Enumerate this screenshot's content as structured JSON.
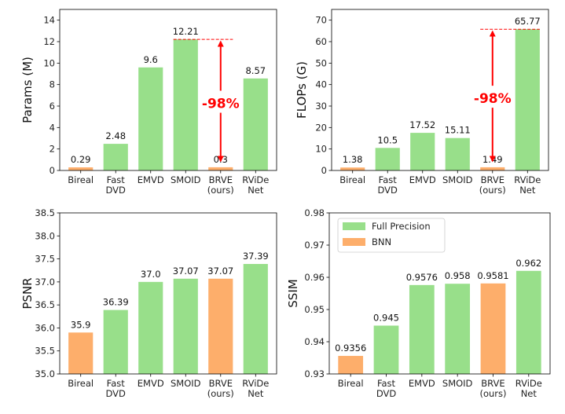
{
  "colors": {
    "full_precision": "#98df8a",
    "bnn": "#fdae6b",
    "annotation": "#ff0000"
  },
  "legend": {
    "placement": "upper-left of SSIM panel",
    "entries": [
      {
        "name": "Full Precision",
        "color": "#98df8a"
      },
      {
        "name": "BNN",
        "color": "#fdae6b"
      }
    ]
  },
  "chart_data": [
    {
      "type": "bar",
      "categories": [
        "Bireal\nFast",
        "Fast\nDVD",
        "EMVD",
        "SMOID",
        "BRVE\n(ours)",
        "RViDe\nNet"
      ],
      "category_labels": [
        [
          "Bireal"
        ],
        [
          "Fast",
          "DVD"
        ],
        [
          "EMVD"
        ],
        [
          "SMOID"
        ],
        [
          "BRVE",
          "(ours)"
        ],
        [
          "RViDe",
          "Net"
        ]
      ],
      "values": [
        0.29,
        2.48,
        9.6,
        12.21,
        0.3,
        8.57
      ],
      "value_labels": [
        "0.29",
        "2.48",
        "9.6",
        "12.21",
        "0.3",
        "8.57"
      ],
      "bar_type": [
        "BNN",
        "Full Precision",
        "Full Precision",
        "Full Precision",
        "BNN",
        "Full Precision"
      ],
      "ylabel": "Params (M)",
      "ylim": [
        0,
        15
      ],
      "yticks": [
        "0",
        "2",
        "4",
        "6",
        "8",
        "10",
        "12",
        "14"
      ],
      "annotation": {
        "text": "-98%",
        "from": 12.21,
        "to": 0.3
      }
    },
    {
      "type": "bar",
      "category_labels": [
        [
          "Bireal"
        ],
        [
          "Fast",
          "DVD"
        ],
        [
          "EMVD"
        ],
        [
          "SMOID"
        ],
        [
          "BRVE",
          "(ours)"
        ],
        [
          "RViDe",
          "Net"
        ]
      ],
      "values": [
        1.38,
        10.5,
        17.52,
        15.11,
        1.49,
        65.77
      ],
      "value_labels": [
        "1.38",
        "10.5",
        "17.52",
        "15.11",
        "1.49",
        "65.77"
      ],
      "bar_type": [
        "BNN",
        "Full Precision",
        "Full Precision",
        "Full Precision",
        "BNN",
        "Full Precision"
      ],
      "ylabel": "FLOPs (G)",
      "ylim": [
        0,
        75
      ],
      "yticks": [
        "0",
        "10",
        "20",
        "30",
        "40",
        "50",
        "60",
        "70"
      ],
      "annotation": {
        "text": "-98%",
        "from": 65.77,
        "to": 1.49
      }
    },
    {
      "type": "bar",
      "category_labels": [
        [
          "Bireal"
        ],
        [
          "Fast",
          "DVD"
        ],
        [
          "EMVD"
        ],
        [
          "SMOID"
        ],
        [
          "BRVE",
          "(ours)"
        ],
        [
          "RViDe",
          "Net"
        ]
      ],
      "values": [
        35.9,
        36.39,
        37.0,
        37.07,
        37.07,
        37.39
      ],
      "value_labels": [
        "35.9",
        "36.39",
        "37.0",
        "37.07",
        "37.07",
        "37.39"
      ],
      "bar_type": [
        "BNN",
        "Full Precision",
        "Full Precision",
        "Full Precision",
        "BNN",
        "Full Precision"
      ],
      "ylabel": "PSNR",
      "ylim": [
        35.0,
        38.5
      ],
      "yticks": [
        "35.0",
        "35.5",
        "36.0",
        "36.5",
        "37.0",
        "37.5",
        "38.0",
        "38.5"
      ]
    },
    {
      "type": "bar",
      "category_labels": [
        [
          "Bireal"
        ],
        [
          "Fast",
          "DVD"
        ],
        [
          "EMVD"
        ],
        [
          "SMOID"
        ],
        [
          "BRVE",
          "(ours)"
        ],
        [
          "RViDe",
          "Net"
        ]
      ],
      "values": [
        0.9356,
        0.945,
        0.9576,
        0.958,
        0.9581,
        0.962
      ],
      "value_labels": [
        "0.9356",
        "0.945",
        "0.9576",
        "0.958",
        "0.9581",
        "0.962"
      ],
      "bar_type": [
        "BNN",
        "Full Precision",
        "Full Precision",
        "Full Precision",
        "BNN",
        "Full Precision"
      ],
      "ylabel": "SSIM",
      "ylim": [
        0.93,
        0.98
      ],
      "yticks": [
        "0.93",
        "0.94",
        "0.95",
        "0.96",
        "0.97",
        "0.98"
      ]
    }
  ]
}
